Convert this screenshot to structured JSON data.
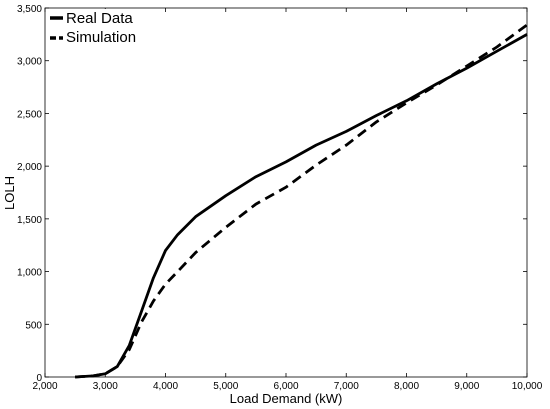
{
  "chart_data": {
    "type": "line",
    "xlabel": "Load Demand (kW)",
    "ylabel": "LOLH",
    "xlim": [
      2000,
      10000
    ],
    "ylim": [
      0,
      3500
    ],
    "grid": false,
    "legend_position": "top-left",
    "x_ticks": [
      {
        "value": 2000,
        "label": "2,000"
      },
      {
        "value": 3000,
        "label": "3,000"
      },
      {
        "value": 4000,
        "label": "4,000"
      },
      {
        "value": 5000,
        "label": "5,000"
      },
      {
        "value": 6000,
        "label": "6,000"
      },
      {
        "value": 7000,
        "label": "7,000"
      },
      {
        "value": 8000,
        "label": "8,000"
      },
      {
        "value": 9000,
        "label": "9,000"
      },
      {
        "value": 10000,
        "label": "10,000"
      }
    ],
    "y_ticks": [
      {
        "value": 0,
        "label": "0"
      },
      {
        "value": 500,
        "label": "500"
      },
      {
        "value": 1000,
        "label": "1,000"
      },
      {
        "value": 1500,
        "label": "1,500"
      },
      {
        "value": 2000,
        "label": "2,000"
      },
      {
        "value": 2500,
        "label": "2,500"
      },
      {
        "value": 3000,
        "label": "3,000"
      },
      {
        "value": 3500,
        "label": "3,500"
      }
    ],
    "series": [
      {
        "name": "Real Data",
        "style": "solid",
        "color": "#000000",
        "x": [
          2500,
          2800,
          3000,
          3200,
          3400,
          3600,
          3800,
          4000,
          4200,
          4500,
          5000,
          5500,
          6000,
          6500,
          7000,
          7500,
          8000,
          8500,
          9000,
          9500,
          10000
        ],
        "y": [
          0,
          10,
          30,
          100,
          300,
          620,
          940,
          1200,
          1350,
          1520,
          1720,
          1900,
          2040,
          2200,
          2330,
          2480,
          2620,
          2780,
          2930,
          3090,
          3250
        ]
      },
      {
        "name": "Simulation",
        "style": "dashed",
        "color": "#000000",
        "x": [
          2500,
          2800,
          3000,
          3200,
          3400,
          3600,
          3800,
          4000,
          4200,
          4500,
          5000,
          5500,
          6000,
          6500,
          7000,
          7500,
          8000,
          8500,
          9000,
          9500,
          10000
        ],
        "y": [
          0,
          10,
          30,
          100,
          260,
          520,
          720,
          880,
          1000,
          1180,
          1420,
          1640,
          1800,
          2010,
          2200,
          2420,
          2600,
          2770,
          2950,
          3130,
          3340
        ]
      }
    ]
  }
}
